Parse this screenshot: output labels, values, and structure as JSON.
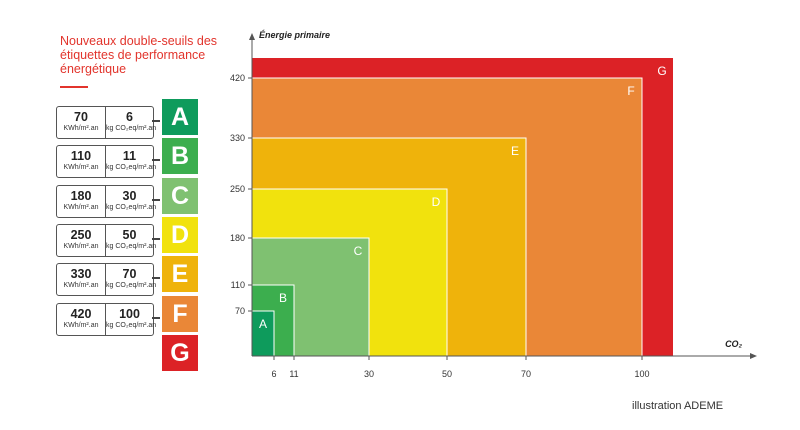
{
  "title": "Nouveaux double-seuils des étiquettes de performance énergétique",
  "credit": "illustration ADEME",
  "colors": {
    "A": "#0e9b5c",
    "B": "#3cae4e",
    "C": "#7fc171",
    "D": "#f1e20d",
    "E": "#efb30b",
    "F": "#ea8737",
    "G": "#dc2226",
    "title": "#e2342c"
  },
  "labels": [
    {
      "letter": "A",
      "energy": "70",
      "co2": "6",
      "energy_unit": "KWh/m².an",
      "co2_unit": "kg CO₂eq/m².an"
    },
    {
      "letter": "B",
      "energy": "110",
      "co2": "11",
      "energy_unit": "KWh/m².an",
      "co2_unit": "kg CO₂eq/m².an"
    },
    {
      "letter": "C",
      "energy": "180",
      "co2": "30",
      "energy_unit": "KWh/m².an",
      "co2_unit": "kg CO₂eq/m².an"
    },
    {
      "letter": "D",
      "energy": "250",
      "co2": "50",
      "energy_unit": "KWh/m².an",
      "co2_unit": "kg CO₂eq/m².an"
    },
    {
      "letter": "E",
      "energy": "330",
      "co2": "70",
      "energy_unit": "KWh/m².an",
      "co2_unit": "kg CO₂eq/m².an"
    },
    {
      "letter": "F",
      "energy": "420",
      "co2": "100",
      "energy_unit": "KWh/m².an",
      "co2_unit": "kg CO₂eq/m².an"
    },
    {
      "letter": "G",
      "energy": "",
      "co2": "",
      "energy_unit": "",
      "co2_unit": ""
    }
  ],
  "chart_data": {
    "type": "area",
    "ylabel": "Énergie primaire",
    "xlabel": "CO₂",
    "x_ticks": [
      6,
      11,
      30,
      50,
      70,
      100
    ],
    "y_ticks": [
      70,
      110,
      180,
      250,
      330,
      420
    ],
    "classes": [
      {
        "letter": "A",
        "co2_max": 6,
        "energy_max": 70
      },
      {
        "letter": "B",
        "co2_max": 11,
        "energy_max": 110
      },
      {
        "letter": "C",
        "co2_max": 30,
        "energy_max": 180
      },
      {
        "letter": "D",
        "co2_max": 50,
        "energy_max": 250
      },
      {
        "letter": "E",
        "co2_max": 70,
        "energy_max": 330
      },
      {
        "letter": "F",
        "co2_max": 100,
        "energy_max": 420
      },
      {
        "letter": "G",
        "co2_max": null,
        "energy_max": null
      }
    ],
    "grid": false,
    "legend": "left"
  }
}
